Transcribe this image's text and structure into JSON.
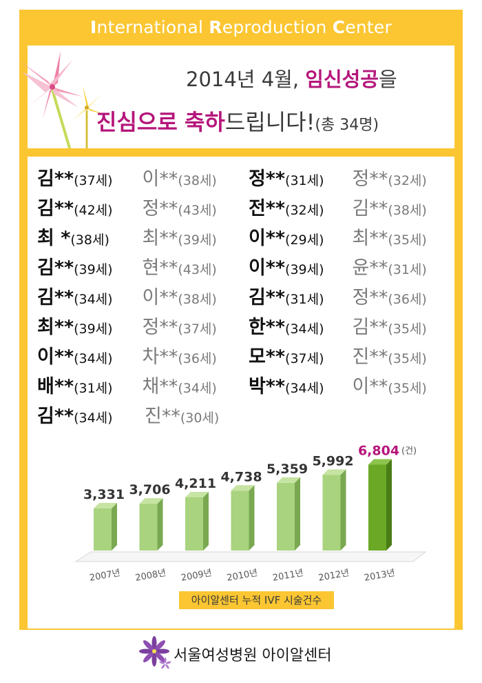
{
  "header": {
    "initials": [
      "I",
      "R",
      "C"
    ],
    "rest": [
      "nternational ",
      "eproduction ",
      "enter"
    ]
  },
  "headline": {
    "line1_prefix": "2014년 4월, ",
    "line1_highlight": "임신성공",
    "line1_suffix": "을",
    "line2_highlight_a": "진심으로",
    "line2_space": " ",
    "line2_highlight_b": "축하",
    "line2_suffix": "드립니다!",
    "line2_note": "(총 34명)"
  },
  "names": {
    "rows": [
      [
        [
          "김**",
          "(37세)"
        ],
        [
          "이**",
          "(38세)"
        ],
        [
          "정**",
          "(31세)"
        ],
        [
          "정**",
          "(32세)"
        ]
      ],
      [
        [
          "김**",
          "(42세)"
        ],
        [
          "정**",
          "(43세)"
        ],
        [
          "전**",
          "(32세)"
        ],
        [
          "김**",
          "(38세)"
        ]
      ],
      [
        [
          "최  *",
          "(38세)"
        ],
        [
          "최**",
          "(39세)"
        ],
        [
          "이**",
          "(29세)"
        ],
        [
          "최**",
          "(35세)"
        ]
      ],
      [
        [
          "김**",
          "(39세)"
        ],
        [
          "현**",
          "(43세)"
        ],
        [
          "이**",
          "(39세)"
        ],
        [
          "윤**",
          "(31세)"
        ]
      ],
      [
        [
          "김**",
          "(34세)"
        ],
        [
          "이**",
          "(38세)"
        ],
        [
          "김**",
          "(31세)"
        ],
        [
          "정**",
          "(36세)"
        ]
      ],
      [
        [
          "최**",
          "(39세)"
        ],
        [
          "정**",
          "(37세)"
        ],
        [
          "한**",
          "(34세)"
        ],
        [
          "김**",
          "(35세)"
        ]
      ],
      [
        [
          "이**",
          "(34세)"
        ],
        [
          "차**",
          "(36세)"
        ],
        [
          "모**",
          "(37세)"
        ],
        [
          "진**",
          "(35세)"
        ]
      ],
      [
        [
          "배**",
          "(31세)"
        ],
        [
          "채**",
          "(34세)"
        ],
        [
          "박**",
          "(34세)"
        ],
        [
          "이**",
          "(35세)"
        ]
      ],
      [
        [
          "김**",
          "(34세)"
        ],
        [
          "진**",
          "(30세)"
        ]
      ]
    ]
  },
  "chart_data": {
    "type": "bar",
    "categories": [
      "2007년",
      "2008년",
      "2009년",
      "2010년",
      "2011년",
      "2012년",
      "2013년"
    ],
    "values": [
      3331,
      3706,
      4211,
      4738,
      5359,
      5992,
      6804
    ],
    "value_labels": [
      "3,331",
      "3,706",
      "4,211",
      "4,738",
      "5,359",
      "5,992",
      "6,804"
    ],
    "unit": "(건)",
    "highlight_index": 6,
    "colors": {
      "bar": "#a9d37e",
      "bar_side": "#7aa851",
      "bar_top": "#c6e4a2",
      "highlight": "#6aa826",
      "highlight_side": "#4a7d16",
      "highlight_top": "#8cc44d",
      "highlight_label": "#b5167b"
    }
  },
  "caption": {
    "text": "아이알센터 누적 IVF 시술건수"
  },
  "footer": {
    "org": "서울여성병원 아이알센터",
    "logo_icon": "flower-logo-icon"
  },
  "colors": {
    "frame": "#fbc632",
    "accent": "#b5167b"
  }
}
